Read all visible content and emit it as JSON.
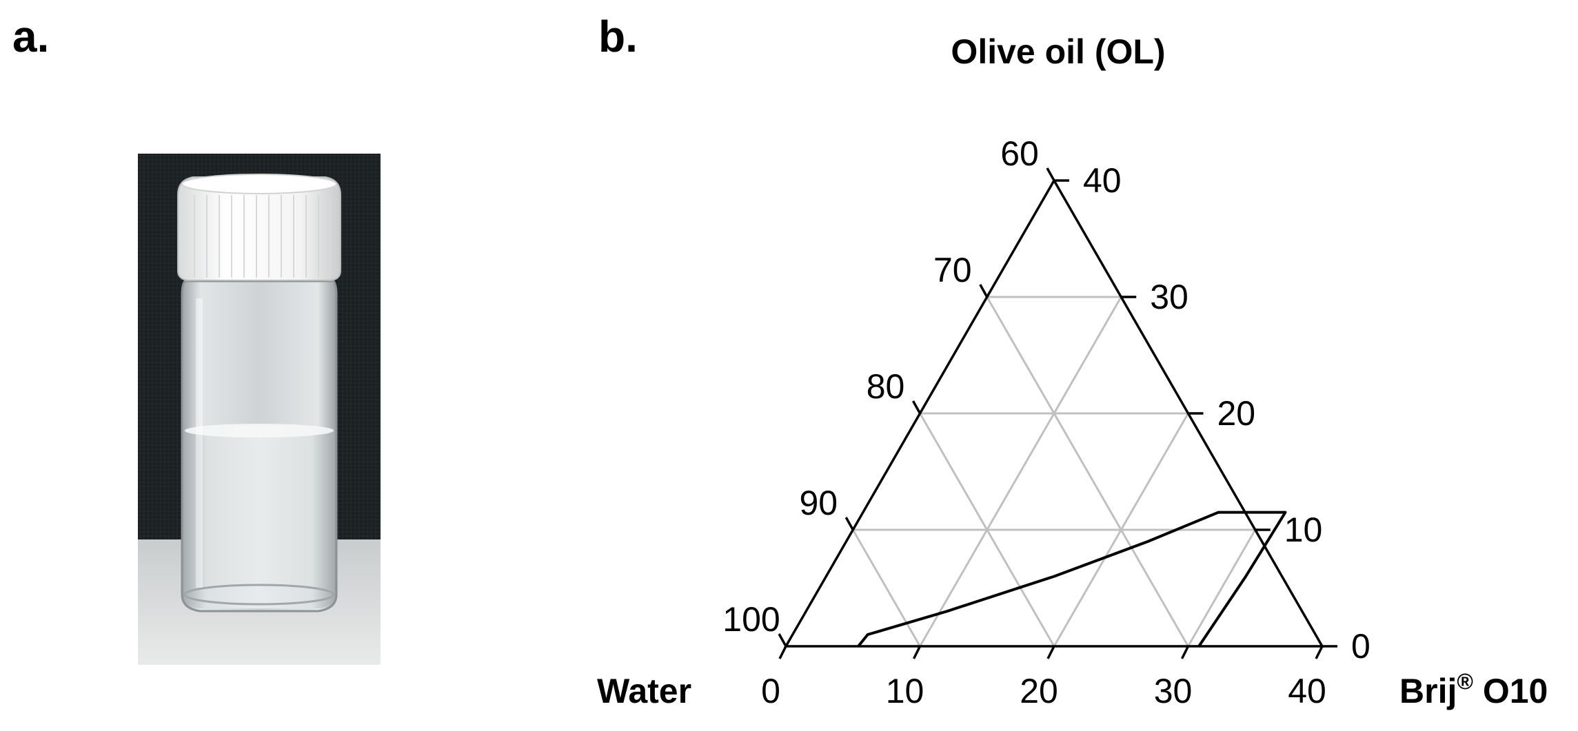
{
  "panels": {
    "a": "a.",
    "b": "b."
  },
  "chart_data": {
    "type": "ternary",
    "vertices": {
      "top": "Olive oil (OL)",
      "left": "Water",
      "right_main": "Brij",
      "right_sup": "®",
      "right_tail": " O10"
    },
    "grid_step_percent": 10,
    "grid": true,
    "oil_axis": {
      "ticks": [
        0,
        10,
        20,
        30,
        40
      ]
    },
    "surfactant_axis": {
      "ticks": [
        0,
        10,
        20,
        30,
        40
      ]
    },
    "water_axis": {
      "ticks": [
        100,
        90,
        80,
        70,
        60
      ]
    },
    "region_boundary_points": [
      {
        "oil": 0,
        "surfactant": 5.4
      },
      {
        "oil": 1,
        "surfactant": 5.6
      },
      {
        "oil": 3,
        "surfactant": 10.5
      },
      {
        "oil": 6,
        "surfactant": 17
      },
      {
        "oil": 9,
        "surfactant": 22.5
      },
      {
        "oil": 11.5,
        "surfactant": 26.5
      },
      {
        "oil": 11.5,
        "surfactant": 31.5
      },
      {
        "oil": 6,
        "surfactant": 31.3
      },
      {
        "oil": 0,
        "surfactant": 30.8
      }
    ]
  }
}
